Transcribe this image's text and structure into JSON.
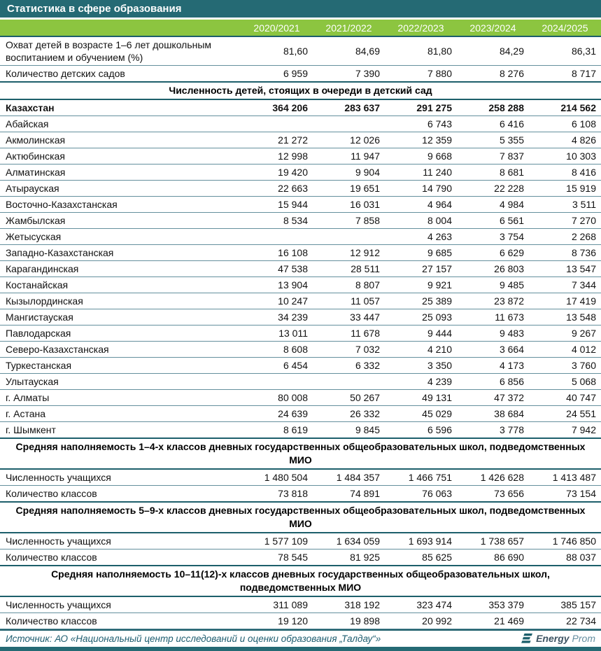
{
  "title_bar": {
    "title": "Статистика в сфере образования"
  },
  "colors": {
    "teal_bar": "#256a74",
    "header_green": "#8cc540",
    "thin_line": "#64909d",
    "thick_line": "#1d5f6b",
    "source_text": "#1e5d70"
  },
  "chart_data": {
    "type": "table",
    "title": "Статистика в сфере образования",
    "columns": [
      "2020/2021",
      "2021/2022",
      "2022/2023",
      "2023/2024",
      "2024/2025"
    ],
    "rows": [
      {
        "type": "data",
        "tall": true,
        "label": "Охват детей в возрасте 1–6 лет дошкольным воспитанием и обучением (%)",
        "values": [
          "81,60",
          "84,69",
          "81,80",
          "84,29",
          "86,31"
        ]
      },
      {
        "type": "data",
        "label": "Количество детских садов",
        "values": [
          "6 959",
          "7 390",
          "7 880",
          "8 276",
          "8 717"
        ]
      },
      {
        "type": "section",
        "label": "Численность детей, стоящих в очереди в детский сад"
      },
      {
        "type": "data",
        "bold": true,
        "label": "Казахстан",
        "values": [
          "364 206",
          "283 637",
          "291 275",
          "258 288",
          "214 562"
        ]
      },
      {
        "type": "data",
        "label": "Абайская",
        "values": [
          "",
          "",
          "6 743",
          "6 416",
          "6 108"
        ]
      },
      {
        "type": "data",
        "label": "Акмолинская",
        "values": [
          "21 272",
          "12 026",
          "12 359",
          "5 355",
          "4 826"
        ]
      },
      {
        "type": "data",
        "label": "Актюбинская",
        "values": [
          "12 998",
          "11 947",
          "9 668",
          "7 837",
          "10 303"
        ]
      },
      {
        "type": "data",
        "label": "Алматинская",
        "values": [
          "19 420",
          "9 904",
          "11 240",
          "8 681",
          "8 416"
        ]
      },
      {
        "type": "data",
        "label": "Атырауская",
        "values": [
          "22 663",
          "19 651",
          "14 790",
          "22 228",
          "15 919"
        ]
      },
      {
        "type": "data",
        "label": "Восточно-Казахстанская",
        "values": [
          "15 944",
          "16 031",
          "4 964",
          "4 984",
          "3 511"
        ]
      },
      {
        "type": "data",
        "label": "Жамбылская",
        "values": [
          "8 534",
          "7 858",
          "8 004",
          "6 561",
          "7 270"
        ]
      },
      {
        "type": "data",
        "label": "Жетысуская",
        "values": [
          "",
          "",
          "4 263",
          "3 754",
          "2 268"
        ]
      },
      {
        "type": "data",
        "label": "Западно-Казахстанская",
        "values": [
          "16 108",
          "12 912",
          "9 685",
          "6 629",
          "8 736"
        ]
      },
      {
        "type": "data",
        "label": "Карагандинская",
        "values": [
          "47 538",
          "28 511",
          "27 157",
          "26 803",
          "13 547"
        ]
      },
      {
        "type": "data",
        "label": "Костанайская",
        "values": [
          "13 904",
          "8 807",
          "9 921",
          "9 485",
          "7 344"
        ]
      },
      {
        "type": "data",
        "label": "Кызылординская",
        "values": [
          "10 247",
          "11 057",
          "25 389",
          "23 872",
          "17 419"
        ]
      },
      {
        "type": "data",
        "label": "Мангистауская",
        "values": [
          "34 239",
          "33 447",
          "25 093",
          "11 673",
          "13 548"
        ]
      },
      {
        "type": "data",
        "label": "Павлодарская",
        "values": [
          "13 011",
          "11 678",
          "9 444",
          "9 483",
          "9 267"
        ]
      },
      {
        "type": "data",
        "label": "Северо-Казахстанская",
        "values": [
          "8 608",
          "7 032",
          "4 210",
          "3 664",
          "4 012"
        ]
      },
      {
        "type": "data",
        "label": "Туркестанская",
        "values": [
          "6 454",
          "6 332",
          "3 350",
          "4 173",
          "3 760"
        ]
      },
      {
        "type": "data",
        "label": "Улытауская",
        "values": [
          "",
          "",
          "4 239",
          "6 856",
          "5 068"
        ]
      },
      {
        "type": "data",
        "label": "г. Алматы",
        "values": [
          "80 008",
          "50 267",
          "49 131",
          "47 372",
          "40 747"
        ]
      },
      {
        "type": "data",
        "label": "г. Астана",
        "values": [
          "24 639",
          "26 332",
          "45 029",
          "38 684",
          "24 551"
        ]
      },
      {
        "type": "data",
        "label": "г. Шымкент",
        "values": [
          "8 619",
          "9 845",
          "6 596",
          "3 778",
          "7 942"
        ]
      },
      {
        "type": "section",
        "label": "Средняя наполняемость 1–4-х классов дневных государственных общеобразовательных школ, подведомственных МИО"
      },
      {
        "type": "data",
        "label": "Численность учащихся",
        "values": [
          "1 480 504",
          "1 484 357",
          "1 466 751",
          "1 426 628",
          "1 413 487"
        ]
      },
      {
        "type": "data",
        "label": "Количество классов",
        "values": [
          "73 818",
          "74 891",
          "76 063",
          "73 656",
          "73 154"
        ]
      },
      {
        "type": "section",
        "label": "Средняя наполняемость 5–9-х классов дневных государственных общеобразовательных школ, подведомственных МИО"
      },
      {
        "type": "data",
        "label": "Численность учащихся",
        "values": [
          "1 577 109",
          "1 634 059",
          "1 693 914",
          "1 738 657",
          "1 746 850"
        ]
      },
      {
        "type": "data",
        "label": "Количество классов",
        "values": [
          "78 545",
          "81 925",
          "85 625",
          "86 690",
          "88 037"
        ]
      },
      {
        "type": "section",
        "label": "Средняя наполняемость 10–11(12)-х классов дневных государственных общеобразовательных школ, подведомственных МИО"
      },
      {
        "type": "data",
        "label": "Численность учащихся",
        "values": [
          "311 089",
          "318 192",
          "323 474",
          "353 379",
          "385 157"
        ]
      },
      {
        "type": "data",
        "label": "Количество классов",
        "values": [
          "19 120",
          "19 898",
          "20 992",
          "21 469",
          "22 734"
        ]
      }
    ]
  },
  "footer": {
    "source_text": "Источник: АО «Национальный центр исследований и оценки образования „Талдау“»",
    "logo": {
      "bold": "Energy",
      "light": "Prom"
    }
  }
}
